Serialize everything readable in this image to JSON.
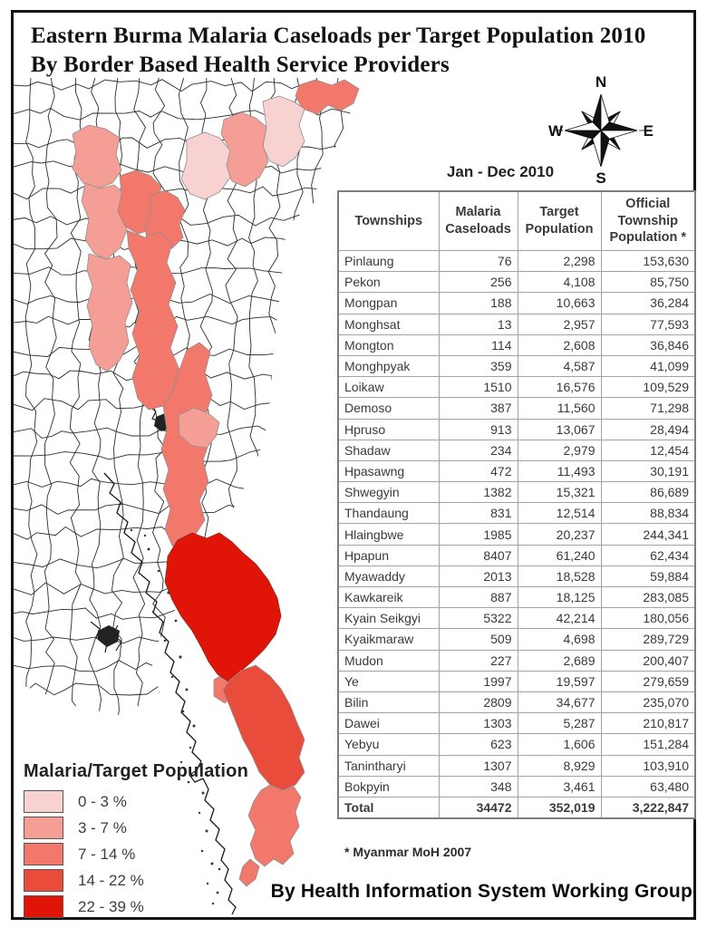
{
  "title_line1": "Eastern Burma Malaria Caseloads per Target Population 2010",
  "title_line2": "By Border Based Health Service Providers",
  "period_label": "Jan - Dec 2010",
  "compass": {
    "north": "N",
    "south": "S",
    "east": "E",
    "west": "W"
  },
  "table": {
    "columns": [
      "Townships",
      "Malaria Caseloads",
      "Target Population",
      "Official Township Population *"
    ],
    "rows": [
      {
        "township": "Pinlaung",
        "malaria_caseloads": "76",
        "target_population": "2,298",
        "official_population": "153,630"
      },
      {
        "township": "Pekon",
        "malaria_caseloads": "256",
        "target_population": "4,108",
        "official_population": "85,750"
      },
      {
        "township": "Mongpan",
        "malaria_caseloads": "188",
        "target_population": "10,663",
        "official_population": "36,284"
      },
      {
        "township": "Monghsat",
        "malaria_caseloads": "13",
        "target_population": "2,957",
        "official_population": "77,593"
      },
      {
        "township": "Mongton",
        "malaria_caseloads": "114",
        "target_population": "2,608",
        "official_population": "36,846"
      },
      {
        "township": "Monghpyak",
        "malaria_caseloads": "359",
        "target_population": "4,587",
        "official_population": "41,099"
      },
      {
        "township": "Loikaw",
        "malaria_caseloads": "1510",
        "target_population": "16,576",
        "official_population": "109,529"
      },
      {
        "township": "Demoso",
        "malaria_caseloads": "387",
        "target_population": "11,560",
        "official_population": "71,298"
      },
      {
        "township": "Hpruso",
        "malaria_caseloads": "913",
        "target_population": "13,067",
        "official_population": "28,494"
      },
      {
        "township": "Shadaw",
        "malaria_caseloads": "234",
        "target_population": "2,979",
        "official_population": "12,454"
      },
      {
        "township": "Hpasawng",
        "malaria_caseloads": "472",
        "target_population": "11,493",
        "official_population": "30,191"
      },
      {
        "township": "Shwegyin",
        "malaria_caseloads": "1382",
        "target_population": "15,321",
        "official_population": "86,689"
      },
      {
        "township": "Thandaung",
        "malaria_caseloads": "831",
        "target_population": "12,514",
        "official_population": "88,834"
      },
      {
        "township": "Hlaingbwe",
        "malaria_caseloads": "1985",
        "target_population": "20,237",
        "official_population": "244,341"
      },
      {
        "township": "Hpapun",
        "malaria_caseloads": "8407",
        "target_population": "61,240",
        "official_population": "62,434"
      },
      {
        "township": "Myawaddy",
        "malaria_caseloads": "2013",
        "target_population": "18,528",
        "official_population": "59,884"
      },
      {
        "township": "Kawkareik",
        "malaria_caseloads": "887",
        "target_population": "18,125",
        "official_population": "283,085"
      },
      {
        "township": "Kyain Seikgyi",
        "malaria_caseloads": "5322",
        "target_population": "42,214",
        "official_population": "180,056"
      },
      {
        "township": "Kyaikmaraw",
        "malaria_caseloads": "509",
        "target_population": "4,698",
        "official_population": "289,729"
      },
      {
        "township": "Mudon",
        "malaria_caseloads": "227",
        "target_population": "2,689",
        "official_population": "200,407"
      },
      {
        "township": "Ye",
        "malaria_caseloads": "1997",
        "target_population": "19,597",
        "official_population": "279,659"
      },
      {
        "township": "Bilin",
        "malaria_caseloads": "2809",
        "target_population": "34,677",
        "official_population": "235,070"
      },
      {
        "township": "Dawei",
        "malaria_caseloads": "1303",
        "target_population": "5,287",
        "official_population": "210,817"
      },
      {
        "township": "Yebyu",
        "malaria_caseloads": "623",
        "target_population": "1,606",
        "official_population": "151,284"
      },
      {
        "township": "Tanintharyi",
        "malaria_caseloads": "1307",
        "target_population": "8,929",
        "official_population": "103,910"
      },
      {
        "township": "Bokpyin",
        "malaria_caseloads": "348",
        "target_population": "3,461",
        "official_population": "63,480"
      }
    ],
    "total": {
      "township": "Total",
      "malaria_caseloads": "34472",
      "target_population": "352,019",
      "official_population": "3,222,847"
    },
    "footnote": "* Myanmar MoH 2007"
  },
  "legend": {
    "title": "Malaria/Target Population",
    "classes": [
      {
        "label": "0 - 3 %",
        "color": "#f8d2d1"
      },
      {
        "label": "3 - 7 %",
        "color": "#f59e96"
      },
      {
        "label": "7 - 14 %",
        "color": "#f1786a"
      },
      {
        "label": "14 - 22 %",
        "color": "#e94c3b"
      },
      {
        "label": "22 - 39 %",
        "color": "#e01407"
      }
    ]
  },
  "footer": "By Health Information System Working Group"
}
